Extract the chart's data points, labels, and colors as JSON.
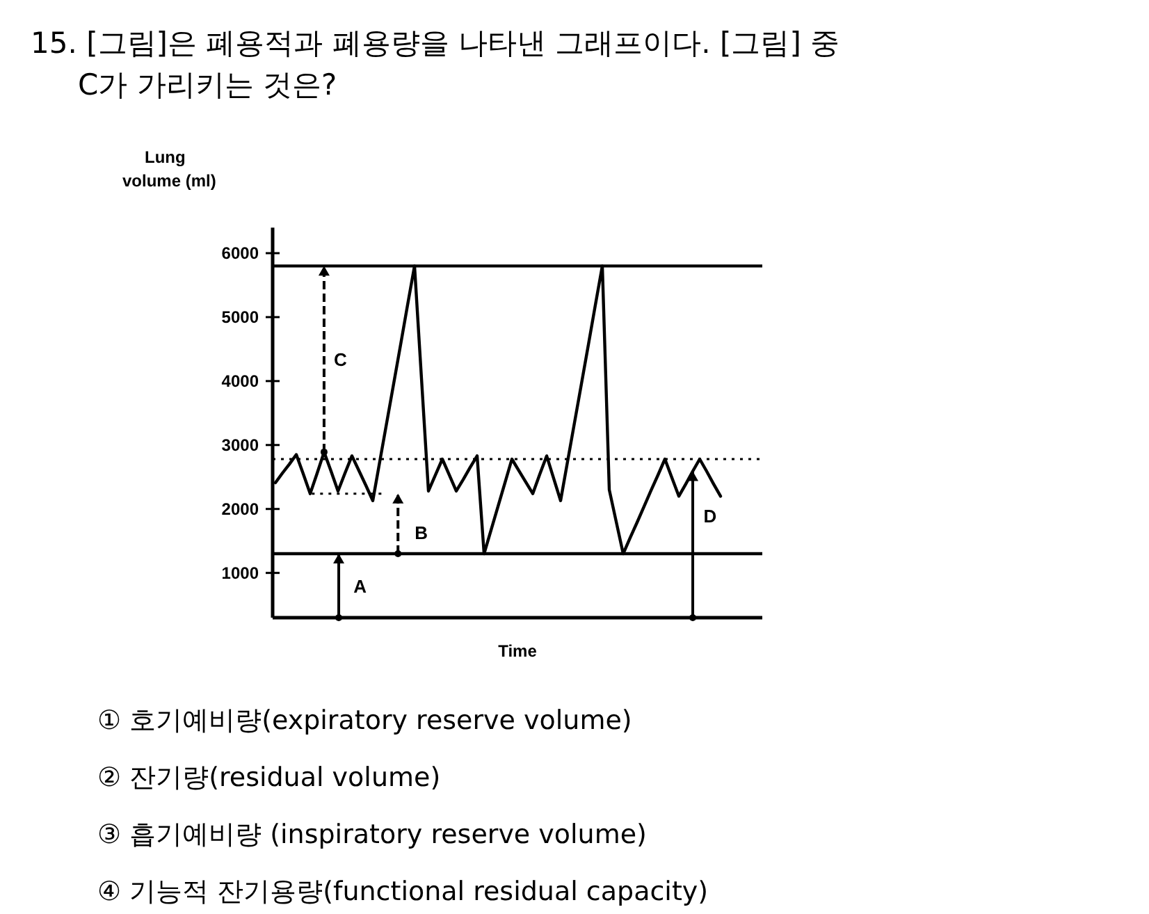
{
  "chart_data": {
    "type": "line",
    "title": "15. [그림]은 폐용적과 폐용량을 나타낸 그래프이다. [그림] 중\nC가 가리키는 것은?",
    "ylabel": "Lung\nvolume (ml)",
    "xlabel": "Time",
    "categories": [
      null,
      null,
      null,
      null,
      null,
      null,
      null,
      null,
      null,
      null,
      null,
      null,
      null,
      null,
      null,
      null,
      null,
      null,
      null,
      null,
      null,
      null,
      null,
      null,
      null,
      null,
      null,
      null,
      null,
      null,
      null,
      null,
      null,
      null,
      null,
      null,
      null,
      null,
      null,
      null,
      null,
      null,
      null,
      null,
      null,
      null,
      null,
      null,
      null,
      null,
      null,
      null,
      null,
      null,
      null,
      null,
      null,
      null,
      null,
      null,
      null,
      null,
      null,
      null,
      null,
      null,
      null,
      null,
      null,
      null,
      null
    ],
    "series": [
      {
        "color": "#000000",
        "values": [
          2410,
          2560,
          2700,
          2850,
          2550,
          2240,
          2560,
          2890,
          2590,
          2280,
          2560,
          2830,
          2600,
          2370,
          2130,
          2740,
          3350,
          3960,
          4570,
          5190,
          5800,
          4040,
          2280,
          2530,
          2780,
          2530,
          2280,
          2460,
          2650,
          2830,
          1300,
          1670,
          2040,
          2410,
          2780,
          2600,
          2420,
          2240,
          2540,
          2830,
          2480,
          2130,
          2740,
          3350,
          3960,
          4570,
          5190,
          5800,
          2300,
          1800,
          1300,
          1550,
          1790,
          2040,
          2290,
          2530,
          2780,
          2490,
          2200,
          2390,
          2590,
          2780,
          2590,
          2390,
          2200,
          null,
          null,
          null,
          null,
          null,
          null
        ]
      }
    ],
    "ylim": [
      300,
      6400
    ],
    "yticks": [
      6000,
      5000,
      4000,
      3000,
      2000,
      1000
    ],
    "tick_labels": "y",
    "grid": false,
    "marker": "none",
    "line_style": "solid",
    "ref_lines": [
      {
        "axis": "y",
        "value": 5800,
        "line_style": "solid"
      },
      {
        "axis": "y",
        "value": 1300,
        "line_style": "solid"
      },
      {
        "axis": "y",
        "value": 2780,
        "line_style": "dotted"
      },
      {
        "axis": "y",
        "value": 2240,
        "line_style": "dotted"
      }
    ],
    "annotations": [
      "A",
      "B",
      "C",
      "D",
      "① 호기예비량(expiratory reserve volume)",
      "② 잔기량(residual volume)",
      "③ 흡기예비량 (inspiratory reserve volume)",
      "④ 기능적 잔기용량(functional residual capacity)"
    ]
  }
}
